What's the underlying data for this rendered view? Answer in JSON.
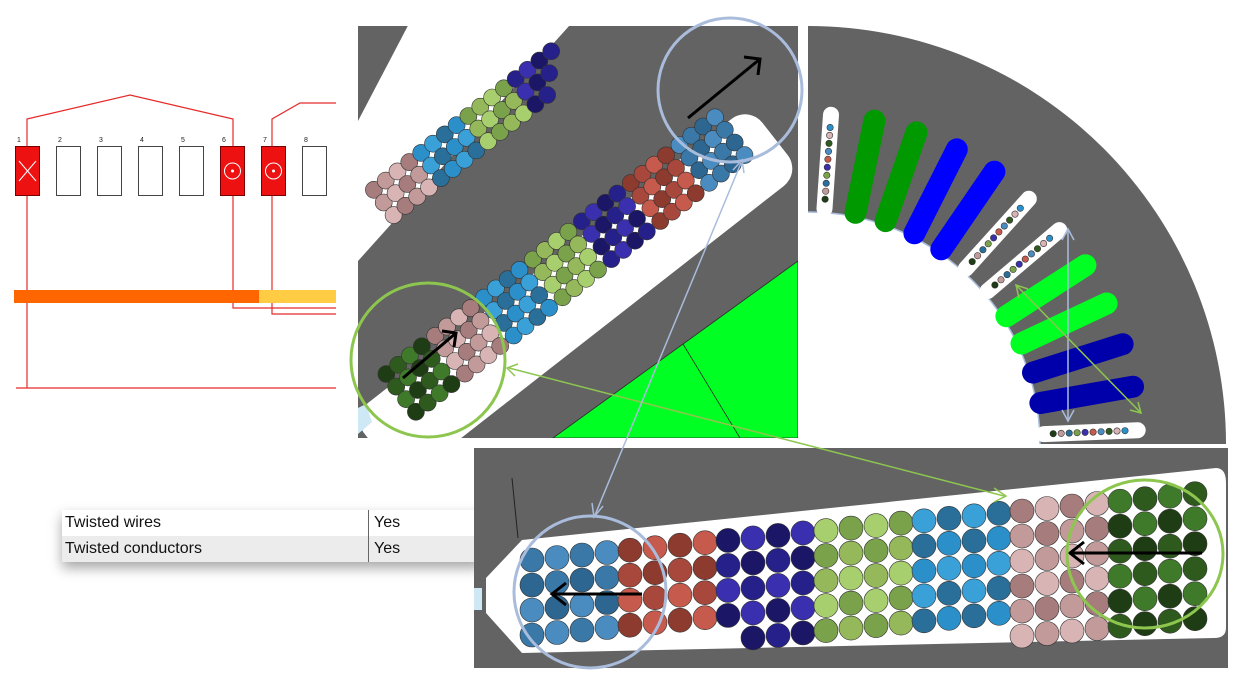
{
  "winding_diagram": {
    "slot_numbers": [
      "1",
      "2",
      "3",
      "4",
      "5",
      "6",
      "7",
      "8"
    ],
    "colors": {
      "conductor_red": "#ee1111",
      "bar_orange": "#ff6600",
      "bar_yellow": "#ffcc44",
      "wire_line": "#e52a2a"
    }
  },
  "properties": {
    "rows": [
      {
        "label": "Twisted wires",
        "value": "Yes"
      },
      {
        "label": "Twisted conductors",
        "value": "Yes"
      }
    ]
  },
  "views": {
    "colors": {
      "background": "#636363",
      "insulation": "#ffffff",
      "slot_green": "#00ff22",
      "highlight_green": "#8dc64f",
      "highlight_blue": "#a9bcdc",
      "arrow": "#000000"
    }
  }
}
